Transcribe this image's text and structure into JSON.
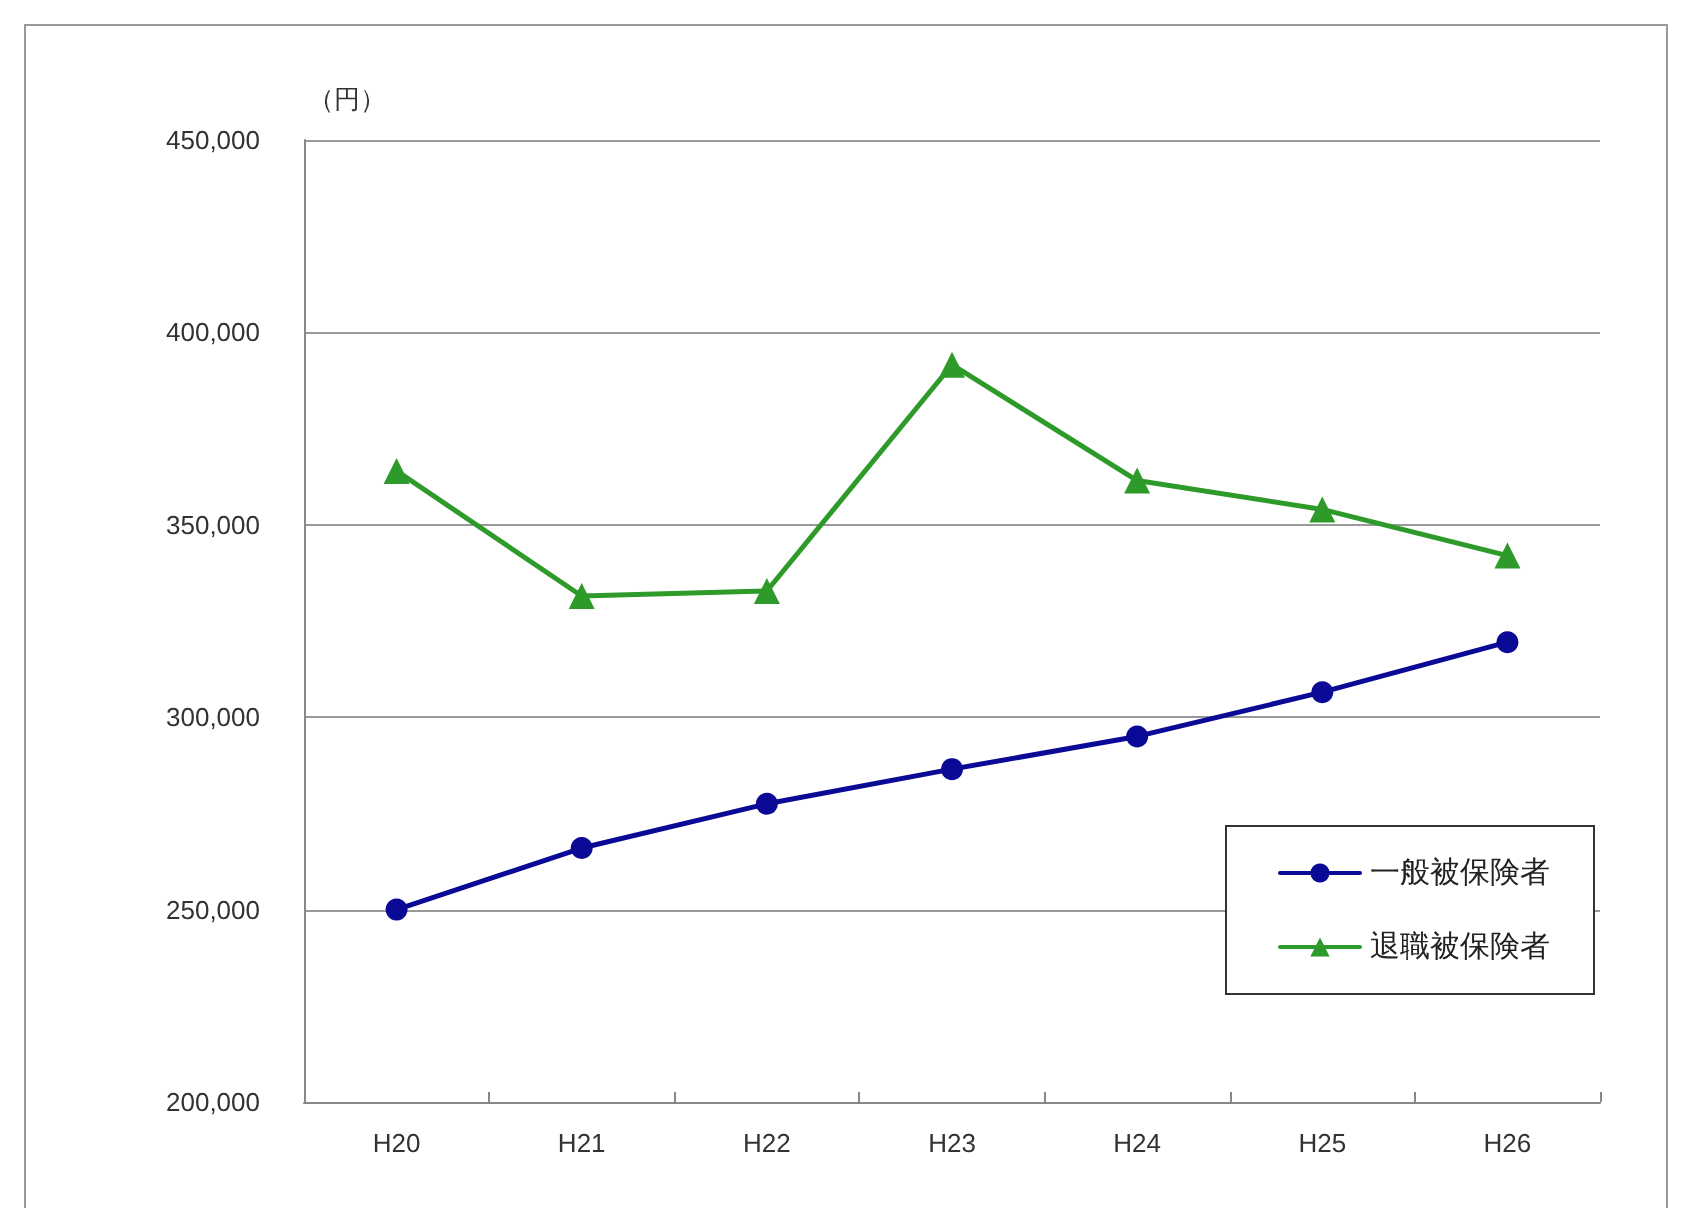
{
  "chart_data": {
    "type": "line",
    "ylabel": "（円）",
    "categories": [
      "H20",
      "H21",
      "H22",
      "H23",
      "H24",
      "H25",
      "H26"
    ],
    "series": [
      {
        "name": "一般被保険者",
        "color": "#0a0a96",
        "marker": "circle",
        "values": [
          250000,
          266000,
          277500,
          286500,
          295000,
          306500,
          319500
        ]
      },
      {
        "name": "退職被保険者",
        "color": "#2e9a2a",
        "marker": "triangle",
        "values": [
          364000,
          331500,
          332800,
          391600,
          361500,
          354000,
          342000
        ]
      }
    ],
    "ylim": [
      200000,
      450000
    ],
    "yticks": [
      {
        "value": 200000,
        "label": "200,000"
      },
      {
        "value": 250000,
        "label": "250,000"
      },
      {
        "value": 300000,
        "label": "300,000"
      },
      {
        "value": 350000,
        "label": "350,000"
      },
      {
        "value": 400000,
        "label": "400,000"
      },
      {
        "value": 450000,
        "label": "450,000"
      }
    ],
    "grid": "y",
    "legend": "bottom right",
    "line_style": "solid"
  }
}
